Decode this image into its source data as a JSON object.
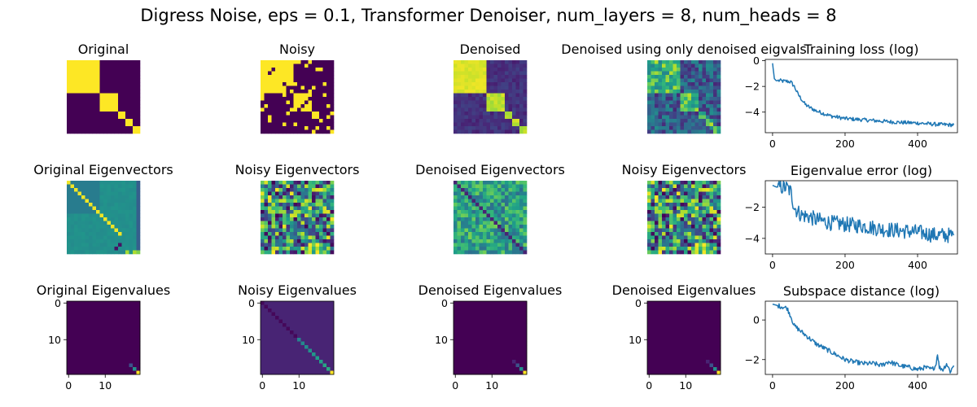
{
  "figure_title": "Digress Noise, eps = 0.1, Transformer Denoiser, num_layers = 8, num_heads = 8",
  "colors": {
    "line": "#1f77b4",
    "viridis_low": "#440154",
    "viridis_high": "#fde725"
  },
  "chart_data": [
    {
      "type": "heatmap",
      "title": "Original",
      "matrix": "adjacency",
      "size": 20,
      "blocks": [
        9,
        5,
        2,
        2,
        2
      ],
      "axes": "off"
    },
    {
      "type": "heatmap",
      "title": "Noisy",
      "matrix": "adjacency_noisy",
      "size": 20,
      "axes": "off"
    },
    {
      "type": "heatmap",
      "title": "Denoised",
      "matrix": "adjacency_denoised",
      "size": 20,
      "axes": "off"
    },
    {
      "type": "heatmap",
      "title": "Denoised using only denoised eigvals",
      "matrix": "adjacency_from_eigvals",
      "size": 20,
      "axes": "off"
    },
    {
      "type": "line",
      "title": "Training loss (log)",
      "xlim": [
        -20,
        510
      ],
      "ylim": [
        -5.6,
        0.1
      ],
      "xticks": [
        0,
        200,
        400
      ],
      "yticks": [
        0,
        -2,
        -4
      ],
      "x": [
        0,
        5,
        10,
        20,
        30,
        40,
        50,
        60,
        70,
        80,
        90,
        100,
        120,
        140,
        160,
        180,
        200,
        250,
        300,
        350,
        400,
        450,
        500
      ],
      "y": [
        -0.2,
        -1.4,
        -1.55,
        -1.55,
        -1.6,
        -1.6,
        -1.65,
        -2.0,
        -2.6,
        -3.0,
        -3.4,
        -3.6,
        -3.9,
        -4.1,
        -4.3,
        -4.4,
        -4.5,
        -4.6,
        -4.7,
        -4.8,
        -4.85,
        -4.95,
        -5.0
      ],
      "noise": 0.15
    },
    {
      "type": "heatmap",
      "title": "Original Eigenvectors",
      "matrix": "eigenvectors",
      "size": 20,
      "axes": "off"
    },
    {
      "type": "heatmap",
      "title": "Noisy Eigenvectors",
      "matrix": "eigenvectors_noisy",
      "size": 20,
      "axes": "off"
    },
    {
      "type": "heatmap",
      "title": "Denoised Eigenvectors",
      "matrix": "eigenvectors_denoised",
      "size": 20,
      "axes": "off"
    },
    {
      "type": "heatmap",
      "title": "Noisy Eigenvectors",
      "matrix": "eigenvectors_noisy",
      "size": 20,
      "axes": "off"
    },
    {
      "type": "line",
      "title": "Eigenvalue error (log)",
      "xlim": [
        -20,
        510
      ],
      "ylim": [
        -5.0,
        -0.3
      ],
      "xticks": [
        0,
        200,
        400
      ],
      "yticks": [
        -2,
        -4
      ],
      "x": [
        0,
        10,
        20,
        40,
        50,
        55,
        60,
        70,
        80,
        100,
        120,
        140,
        160,
        200,
        250,
        300,
        350,
        400,
        450,
        500
      ],
      "y": [
        -0.6,
        -0.7,
        -0.7,
        -0.75,
        -1.0,
        -1.5,
        -2.0,
        -2.3,
        -2.5,
        -2.6,
        -2.8,
        -2.9,
        -3.0,
        -3.1,
        -3.2,
        -3.4,
        -3.5,
        -3.6,
        -3.8,
        -3.8
      ],
      "noise": 0.5
    },
    {
      "type": "heatmap",
      "title": "Original Eigenvalues",
      "matrix": "eigenvalues",
      "size": 20,
      "axes": "on",
      "xticks": [
        0,
        10
      ],
      "yticks": [
        0,
        10
      ],
      "diag_nonzero": [
        17,
        18,
        19
      ]
    },
    {
      "type": "heatmap",
      "title": "Noisy Eigenvalues",
      "matrix": "eigenvalues_noisy",
      "size": 20,
      "axes": "on",
      "xticks": [
        0,
        10
      ],
      "yticks": [
        0,
        10
      ]
    },
    {
      "type": "heatmap",
      "title": "Denoised Eigenvalues",
      "matrix": "eigenvalues_denoised",
      "size": 20,
      "axes": "on",
      "xticks": [
        0,
        10
      ],
      "yticks": [
        0,
        10
      ]
    },
    {
      "type": "heatmap",
      "title": "Denoised Eigenvalues",
      "matrix": "eigenvalues_denoised",
      "size": 20,
      "axes": "on",
      "xticks": [
        0,
        10
      ],
      "yticks": [
        0,
        10
      ]
    },
    {
      "type": "line",
      "title": "Subspace distance (log)",
      "xlim": [
        -20,
        510
      ],
      "ylim": [
        -2.75,
        0.95
      ],
      "xticks": [
        0,
        200,
        400
      ],
      "yticks": [
        0,
        -2
      ],
      "x": [
        0,
        20,
        40,
        50,
        60,
        80,
        100,
        120,
        140,
        160,
        180,
        200,
        220,
        250,
        280,
        300,
        320,
        350,
        380,
        400,
        420,
        440,
        450,
        455,
        460,
        470,
        480,
        490,
        500
      ],
      "y": [
        0.8,
        0.7,
        0.6,
        0.2,
        -0.3,
        -0.6,
        -0.9,
        -1.2,
        -1.4,
        -1.6,
        -1.8,
        -2.0,
        -2.1,
        -2.2,
        -2.2,
        -2.3,
        -2.1,
        -2.3,
        -2.4,
        -2.5,
        -2.4,
        -2.5,
        -2.3,
        -1.7,
        -2.4,
        -2.5,
        -2.2,
        -2.6,
        -2.3
      ],
      "noise": 0.12
    }
  ]
}
